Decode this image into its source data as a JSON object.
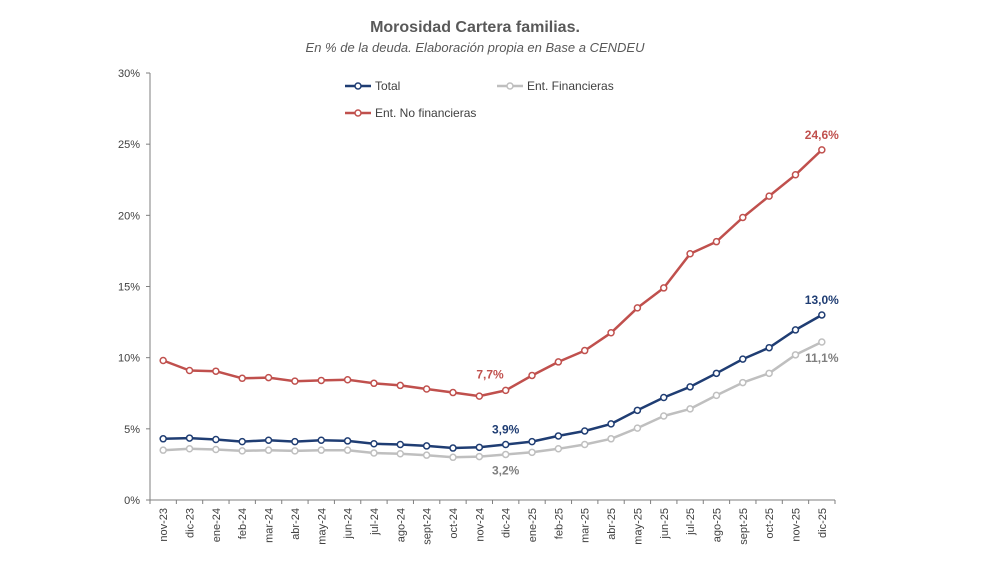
{
  "chart_data": {
    "type": "line",
    "title": "Morosidad Cartera familias.",
    "subtitle": "En % de la deuda. Elaboración propia en Base a CENDEU",
    "xlabel": "",
    "ylabel": "",
    "ylim": [
      0,
      30
    ],
    "yticks": [
      0,
      5,
      10,
      15,
      20,
      25,
      30
    ],
    "ytick_labels": [
      "0%",
      "5%",
      "10%",
      "15%",
      "20%",
      "25%",
      "30%"
    ],
    "grid": false,
    "legend_position": "top",
    "categories": [
      "nov-23",
      "dic-23",
      "ene-24",
      "feb-24",
      "mar-24",
      "abr-24",
      "may-24",
      "jun-24",
      "jul-24",
      "ago-24",
      "sept-24",
      "oct-24",
      "nov-24",
      "dic-24",
      "ene-25",
      "feb-25",
      "mar-25",
      "abr-25",
      "may-25",
      "jun-25",
      "jul-25",
      "ago-25",
      "sept-25",
      "oct-25",
      "nov-25",
      "dic-25"
    ],
    "series": [
      {
        "name": "Total",
        "color": "#1f3d73",
        "values": [
          4.3,
          4.35,
          4.25,
          4.1,
          4.2,
          4.1,
          4.2,
          4.15,
          3.95,
          3.9,
          3.8,
          3.65,
          3.7,
          3.9,
          4.1,
          4.5,
          4.85,
          5.35,
          6.3,
          7.2,
          7.95,
          8.9,
          9.9,
          10.7,
          11.95,
          13.0
        ]
      },
      {
        "name": "Ent. Financieras",
        "color": "#bfbfbf",
        "values": [
          3.5,
          3.6,
          3.55,
          3.45,
          3.5,
          3.45,
          3.5,
          3.5,
          3.3,
          3.25,
          3.15,
          3.0,
          3.05,
          3.2,
          3.35,
          3.6,
          3.9,
          4.3,
          5.05,
          5.9,
          6.4,
          7.35,
          8.25,
          8.9,
          10.2,
          11.1
        ]
      },
      {
        "name": "Ent. No financieras",
        "color": "#c0504d",
        "values": [
          9.8,
          9.1,
          9.05,
          8.55,
          8.6,
          8.35,
          8.4,
          8.45,
          8.2,
          8.05,
          7.8,
          7.55,
          7.3,
          7.7,
          8.75,
          9.7,
          10.5,
          11.75,
          13.5,
          14.9,
          17.3,
          18.15,
          19.85,
          21.35,
          22.85,
          24.6
        ]
      }
    ],
    "annotations": [
      {
        "text": "7,7%",
        "series": 2,
        "index": 13,
        "pos": "above-left",
        "color": "#c0504d"
      },
      {
        "text": "24,6%",
        "series": 2,
        "index": 25,
        "pos": "above",
        "color": "#c0504d"
      },
      {
        "text": "3,9%",
        "series": 0,
        "index": 13,
        "pos": "above",
        "color": "#1f3d73"
      },
      {
        "text": "13,0%",
        "series": 0,
        "index": 25,
        "pos": "above",
        "color": "#1f3d73"
      },
      {
        "text": "3,2%",
        "series": 1,
        "index": 13,
        "pos": "below",
        "color": "#7f7f7f"
      },
      {
        "text": "11,1%",
        "series": 1,
        "index": 25,
        "pos": "below",
        "color": "#7f7f7f"
      }
    ]
  }
}
